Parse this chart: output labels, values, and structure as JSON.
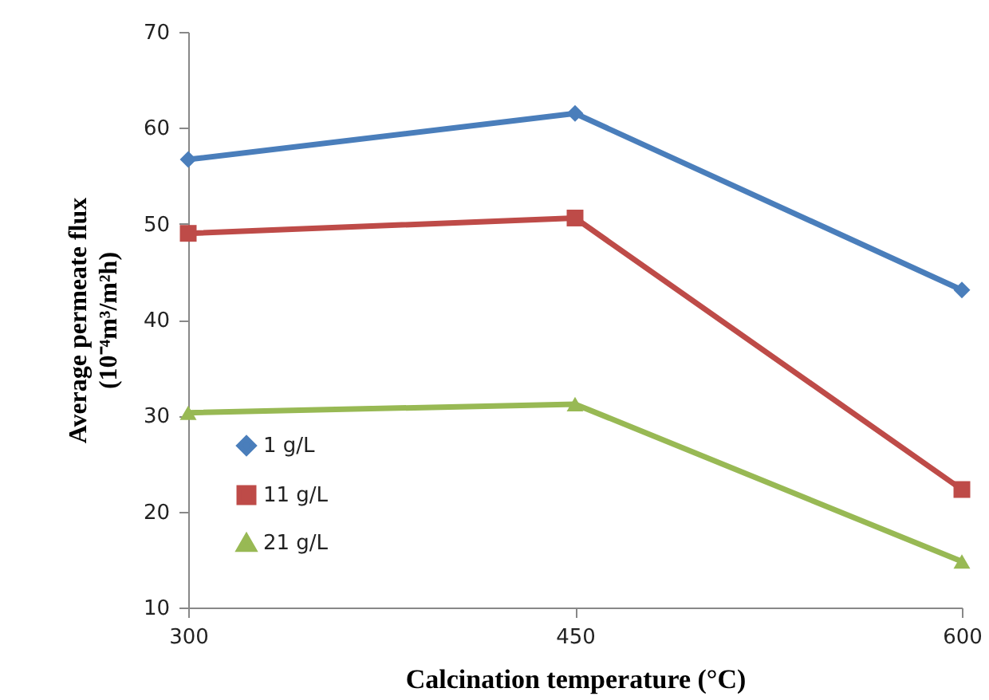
{
  "chart_data": {
    "type": "line",
    "xlabel": "Calcination temperature (°C)",
    "ylabel": "Average permeate flux\n(10⁻⁴m³/m²h)",
    "x": [
      300,
      450,
      600
    ],
    "xlim": [
      300,
      600
    ],
    "xticks": [
      300,
      450,
      600
    ],
    "ylim": [
      10,
      70
    ],
    "yticks": [
      10,
      20,
      30,
      40,
      50,
      60,
      70
    ],
    "grid": false,
    "legend": "bottom left",
    "line_style": "solid",
    "series": [
      {
        "name": "1 g/L",
        "color": "#4a7ebb",
        "marker": "diamond",
        "values": [
          56.7,
          61.5,
          43.1
        ]
      },
      {
        "name": "11 g/L",
        "color": "#be4b48",
        "marker": "square",
        "values": [
          49.0,
          50.6,
          22.3
        ]
      },
      {
        "name": "21 g/L",
        "color": "#98b954",
        "marker": "triangle",
        "values": [
          30.3,
          31.2,
          14.8
        ]
      }
    ]
  }
}
